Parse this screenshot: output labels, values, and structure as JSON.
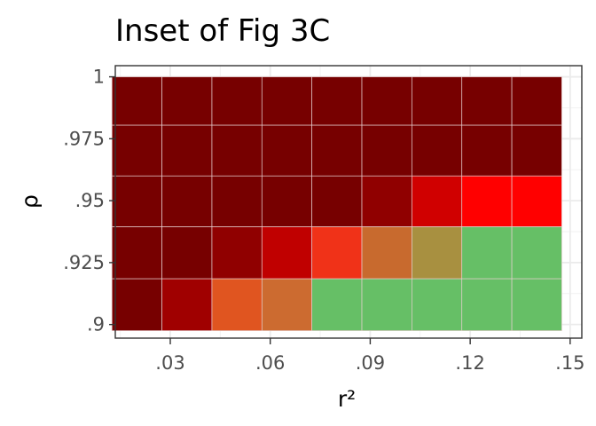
{
  "chart_data": {
    "type": "heatmap",
    "title": "Inset of Fig 3C",
    "xlabel": "r²",
    "ylabel": "ρ",
    "x_ticks": [
      0.03,
      0.06,
      0.09,
      0.12,
      0.15
    ],
    "x_tick_labels": [
      ".03",
      ".06",
      ".09",
      ".12",
      ".15"
    ],
    "y_ticks": [
      0.9,
      0.925,
      0.95,
      0.975,
      1
    ],
    "y_tick_labels": [
      ".9",
      ".925",
      ".95",
      ".975",
      "1"
    ],
    "xlim": [
      0.0135,
      0.1535
    ],
    "ylim": [
      0.8945,
      1.0045
    ],
    "grid": true,
    "x": [
      0.02,
      0.035,
      0.05,
      0.065,
      0.08,
      0.095,
      0.11,
      0.125,
      0.14
    ],
    "y_bins": [
      [
        0.8975,
        0.9185
      ],
      [
        0.9185,
        0.9395
      ],
      [
        0.9395,
        0.96
      ],
      [
        0.96,
        0.9805
      ],
      [
        0.9805,
        1.0
      ]
    ],
    "colors": [
      [
        "#770000",
        "#a00000",
        "#e05520",
        "#cc6b30",
        "#66bf66",
        "#66bf66",
        "#66bf66",
        "#66bf66",
        "#66bf66"
      ],
      [
        "#770000",
        "#770000",
        "#900000",
        "#c00000",
        "#f03218",
        "#c86a2e",
        "#a89040",
        "#66bf66",
        "#66bf66"
      ],
      [
        "#770000",
        "#770000",
        "#770000",
        "#770000",
        "#770000",
        "#900000",
        "#d00000",
        "#ff0000",
        "#ff0000"
      ],
      [
        "#770000",
        "#770000",
        "#770000",
        "#770000",
        "#770000",
        "#770000",
        "#770000",
        "#770000",
        "#770000"
      ],
      [
        "#770000",
        "#770000",
        "#770000",
        "#770000",
        "#770000",
        "#770000",
        "#770000",
        "#770000",
        "#770000"
      ]
    ]
  }
}
